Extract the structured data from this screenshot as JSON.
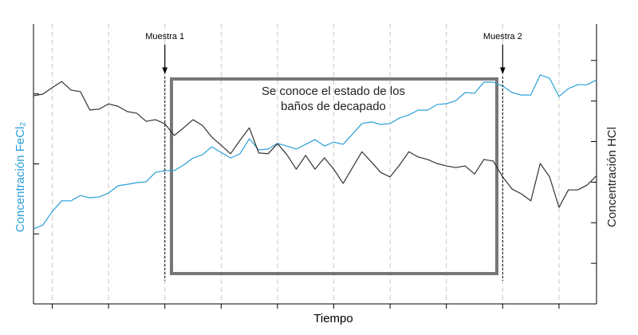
{
  "chart_data": {
    "type": "line",
    "x_label": "Tiempo",
    "y_label": "Concentración FeCl₂",
    "y2_label": "Concentración HCl",
    "box_text": [
      "Se conoce el estado de los",
      "baños de decapado"
    ],
    "annotations": [
      {
        "text": "Muestra 1",
        "x": 14
      },
      {
        "text": "Muestra 2",
        "x": 50
      }
    ],
    "x": [
      0,
      1,
      2,
      3,
      4,
      5,
      6,
      7,
      8,
      9,
      10,
      11,
      12,
      13,
      14,
      15,
      16,
      17,
      18,
      19,
      20,
      21,
      22,
      23,
      24,
      25,
      26,
      27,
      28,
      29,
      30,
      31,
      32,
      33,
      34,
      35,
      36,
      37,
      38,
      39,
      40,
      41,
      42,
      43,
      44,
      45,
      46,
      47,
      48,
      49,
      50,
      51,
      52,
      53,
      54,
      55,
      56,
      57,
      58,
      59,
      60
    ],
    "xlim": [
      0,
      60
    ],
    "xticks": [
      2,
      8,
      14,
      20,
      26,
      32,
      38,
      44,
      50,
      56
    ],
    "ylim": [
      0,
      100
    ],
    "yticks": [
      25,
      50,
      75
    ],
    "y2lim": [
      0,
      6.9
    ],
    "y2ticks": [
      1,
      2,
      3,
      4,
      5,
      6
    ],
    "grid": true,
    "series": [
      {
        "color": "#2a9fd8",
        "axis": "y",
        "values": [
          26.8,
          28.2,
          33.0,
          36.8,
          36.8,
          38.7,
          37.9,
          38.2,
          39.6,
          42.2,
          42.7,
          43.3,
          43.6,
          47.0,
          47.6,
          47.6,
          49.6,
          52.1,
          53.3,
          56.1,
          54.1,
          52.1,
          53.6,
          59.0,
          55.0,
          55.3,
          57.3,
          56.4,
          55.3,
          57.0,
          58.7,
          56.4,
          57.8,
          57.0,
          60.7,
          64.4,
          65.0,
          64.1,
          64.4,
          66.4,
          67.5,
          69.2,
          69.2,
          71.2,
          71.5,
          72.6,
          75.5,
          75.2,
          79.2,
          79.2,
          77.8,
          75.5,
          74.6,
          74.6,
          81.8,
          80.6,
          74.1,
          76.9,
          78.3,
          78.3,
          80.0
        ]
      },
      {
        "color": "#333333",
        "axis": "y2",
        "values": [
          5.13,
          5.17,
          5.33,
          5.48,
          5.27,
          5.23,
          4.78,
          4.8,
          4.93,
          4.87,
          4.74,
          4.7,
          4.5,
          4.54,
          4.44,
          4.15,
          4.34,
          4.54,
          4.4,
          4.11,
          3.91,
          3.7,
          4.03,
          4.34,
          3.72,
          3.7,
          3.95,
          3.68,
          3.32,
          3.66,
          3.32,
          3.6,
          3.32,
          2.97,
          3.36,
          3.75,
          3.5,
          3.24,
          3.13,
          3.42,
          3.75,
          3.62,
          3.56,
          3.46,
          3.4,
          3.36,
          3.4,
          3.2,
          3.56,
          3.52,
          3.13,
          2.83,
          2.71,
          2.54,
          3.46,
          3.13,
          2.38,
          2.81,
          2.81,
          2.93,
          3.16
        ]
      }
    ]
  }
}
